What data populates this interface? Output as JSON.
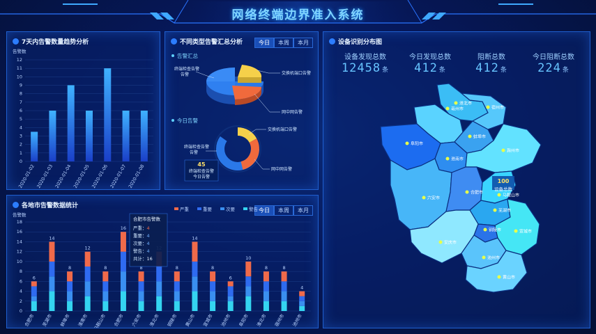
{
  "header": {
    "title": "网络终端边界准入系统"
  },
  "trend": {
    "title": "7天内告警数量趋势分析",
    "ylabel": "告警数",
    "chart_data": {
      "type": "bar",
      "categories": [
        "2020-01-02",
        "2020-01-03",
        "2020-01-04",
        "2020-01-05",
        "2020-01-06",
        "2020-01-07",
        "2020-01-08"
      ],
      "values": [
        3.5,
        6,
        9,
        6,
        11,
        6,
        6
      ],
      "ylim": [
        0,
        12
      ],
      "yticks": [
        0,
        1,
        2,
        3,
        4,
        5,
        6,
        7,
        8,
        9,
        10,
        11,
        12
      ]
    }
  },
  "types": {
    "title": "不同类型告警汇总分析",
    "tabs": [
      "今日",
      "本周",
      "本月"
    ],
    "summary_label": "告警汇总",
    "today_label": "今日告警",
    "labels": {
      "a": "终端检查告警",
      "b": "交换机端口告警",
      "c": "网中网告警"
    },
    "center_value": "45",
    "center_text_1": "终端检查告警",
    "center_text_2": "今日告警",
    "colors": {
      "a": "#2a78e8",
      "b": "#f5d04a",
      "c": "#f06a3c"
    }
  },
  "cities": {
    "title": "各地市告警数据统计",
    "tabs": [
      "今日",
      "本周",
      "本月"
    ],
    "ylabel": "告警数",
    "legend": [
      "严重",
      "重要",
      "次要",
      "警告"
    ],
    "tooltip": {
      "title": "合肥市告警数",
      "rows": [
        [
          "严重",
          "4"
        ],
        [
          "重要",
          "4"
        ],
        [
          "次要",
          "4"
        ],
        [
          "警告",
          "4"
        ],
        [
          "共计",
          "16"
        ]
      ]
    },
    "chart_data": {
      "type": "stacked-bar",
      "categories": [
        "合肥市",
        "芜湖市",
        "蚌埠市",
        "淮南市",
        "马鞍山市",
        "合肥市",
        "六安市",
        "淮北市",
        "铜陵市",
        "黄山市",
        "宣城市",
        "池州市",
        "阜阳市",
        "淮北市",
        "宿州市",
        "池州市"
      ],
      "totals": [
        6,
        14,
        8,
        12,
        8,
        16,
        8,
        12,
        8,
        14,
        8,
        6,
        10,
        8,
        8,
        4
      ],
      "series": [
        {
          "name": "严重",
          "values": [
            1,
            4,
            2,
            3,
            2,
            4,
            2,
            3,
            2,
            4,
            2,
            1,
            3,
            2,
            2,
            1
          ]
        },
        {
          "name": "重要",
          "values": [
            2,
            3,
            2,
            3,
            2,
            4,
            2,
            3,
            2,
            3,
            2,
            2,
            2,
            2,
            2,
            1
          ]
        },
        {
          "name": "次要",
          "values": [
            1,
            3,
            2,
            3,
            2,
            4,
            2,
            3,
            2,
            3,
            2,
            1,
            2,
            2,
            2,
            1
          ]
        },
        {
          "name": "警告",
          "values": [
            2,
            4,
            2,
            3,
            2,
            4,
            2,
            3,
            2,
            4,
            2,
            2,
            3,
            2,
            2,
            1
          ]
        }
      ],
      "ylim": [
        0,
        18
      ],
      "yticks": [
        0,
        2,
        4,
        6,
        8,
        10,
        12,
        14,
        16,
        18
      ],
      "colors": [
        "#f06a4a",
        "#2f6bf0",
        "#3a8ff0",
        "#34d4f0"
      ]
    }
  },
  "map": {
    "title": "设备识别分布图",
    "stats": [
      {
        "label": "设备发现总数",
        "value": "12458",
        "unit": "条"
      },
      {
        "label": "今日发现总数",
        "value": "412",
        "unit": "条"
      },
      {
        "label": "阻断总数",
        "value": "412",
        "unit": "条"
      },
      {
        "label": "今日阻断总数",
        "value": "224",
        "unit": "条"
      }
    ],
    "city_labels": [
      "淮北市",
      "亳州市",
      "宿州市",
      "阜阳市",
      "蚌埠市",
      "淮南市",
      "滁州市",
      "六安市",
      "合肥市",
      "马鞍山市",
      "芜湖市",
      "铜陵市",
      "安庆市",
      "宣城市",
      "池州市",
      "黄山市"
    ],
    "tip_value": "100",
    "tip_label": "设备总数"
  }
}
